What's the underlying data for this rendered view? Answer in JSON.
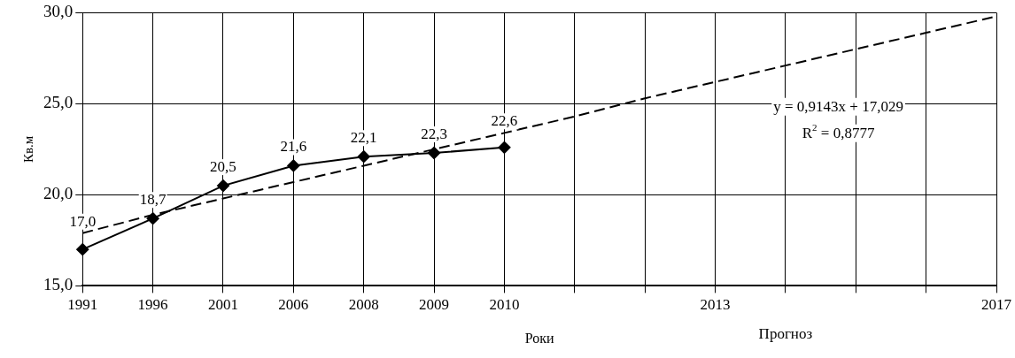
{
  "chart_data": {
    "type": "line",
    "xlabel": "Роки",
    "ylabel": "Кв.м",
    "categories": [
      "1991",
      "1996",
      "2001",
      "2006",
      "2008",
      "2009",
      "2010",
      null,
      null,
      "2013",
      null,
      null,
      null,
      "2017"
    ],
    "ylim": [
      15,
      30
    ],
    "yticks": [
      {
        "value": 15,
        "label": "15,0"
      },
      {
        "value": 20,
        "label": "20,0"
      },
      {
        "value": 25,
        "label": "25,0"
      },
      {
        "value": 30,
        "label": "30,0"
      }
    ],
    "grid": true,
    "legend": false,
    "series": [
      {
        "color": "#000000",
        "marker": "diamond",
        "line_style": "solid",
        "values": [
          17.0,
          18.7,
          20.5,
          21.6,
          22.1,
          22.3,
          22.6,
          null,
          null,
          null,
          null,
          null,
          null,
          null
        ],
        "value_labels": [
          "17,0",
          "18,7",
          "20,5",
          "21,6",
          "22,1",
          "22,3",
          "22,6",
          null,
          null,
          null,
          null,
          null,
          null,
          null
        ]
      },
      {
        "type": "line",
        "color": "#000000",
        "marker": "none",
        "line_style": "dashed",
        "values": [
          17.9,
          18.9,
          19.8,
          20.7,
          21.6,
          22.5,
          23.4,
          24.3,
          25.3,
          26.2,
          27.1,
          28.0,
          28.9,
          29.8
        ]
      }
    ],
    "annotations": [
      "y = 0,9143x + 17,029\nR$^{2}$ = 0,8777",
      "Прогноз"
    ]
  }
}
